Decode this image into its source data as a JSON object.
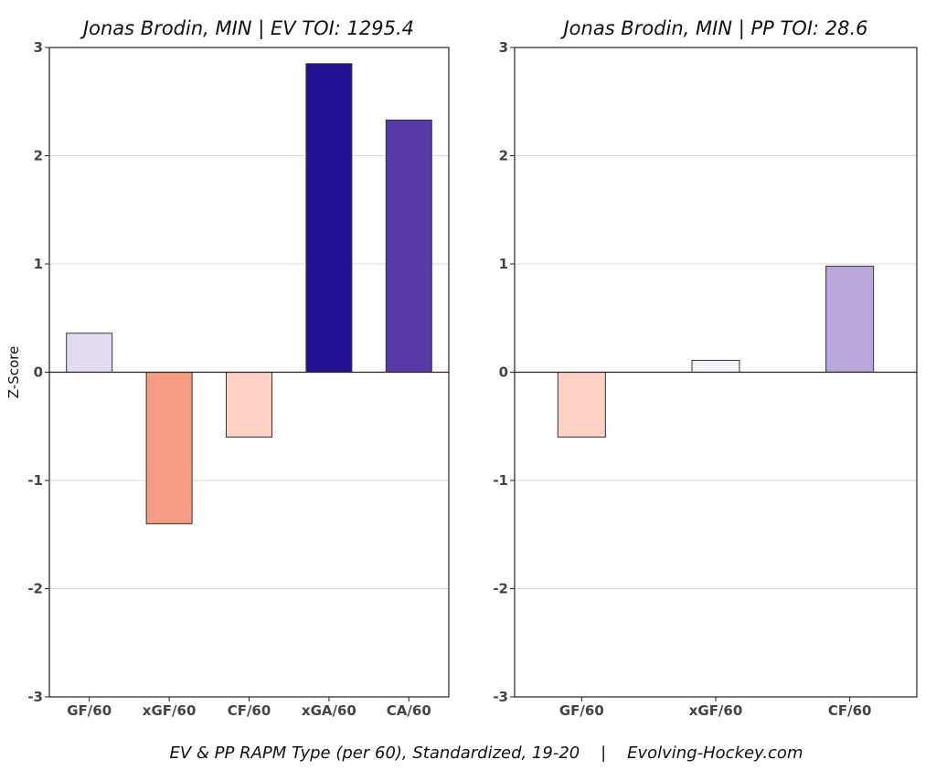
{
  "caption": "EV & PP RAPM Type (per 60), Standardized, 19-20    |    Evolving-Hockey.com",
  "chart_data": [
    {
      "type": "bar",
      "title": "Jonas Brodin, MIN  |  EV TOI: 1295.4",
      "ylabel": "Z-Score",
      "xlabel": "",
      "ylim": [
        -3,
        3
      ],
      "yticks": [
        -3,
        -2,
        -1,
        0,
        1,
        2,
        3
      ],
      "grid": true,
      "categories": [
        "GF/60",
        "xGF/60",
        "CF/60",
        "xGA/60",
        "CA/60"
      ],
      "values": [
        0.36,
        -1.4,
        -0.6,
        2.85,
        2.33
      ],
      "colors": [
        "#e2dcee",
        "#f79c84",
        "#fdd1c4",
        "#21108f",
        "#573ba6"
      ]
    },
    {
      "type": "bar",
      "title": "Jonas Brodin, MIN  |  PP TOI: 28.6",
      "ylabel": "",
      "xlabel": "",
      "ylim": [
        -3,
        3
      ],
      "yticks": [
        -3,
        -2,
        -1,
        0,
        1,
        2,
        3
      ],
      "grid": true,
      "categories": [
        "GF/60",
        "xGF/60",
        "CF/60"
      ],
      "values": [
        -0.6,
        0.11,
        0.98
      ],
      "colors": [
        "#fdd1c4",
        "#f4f2f9",
        "#b9a8da"
      ]
    }
  ]
}
